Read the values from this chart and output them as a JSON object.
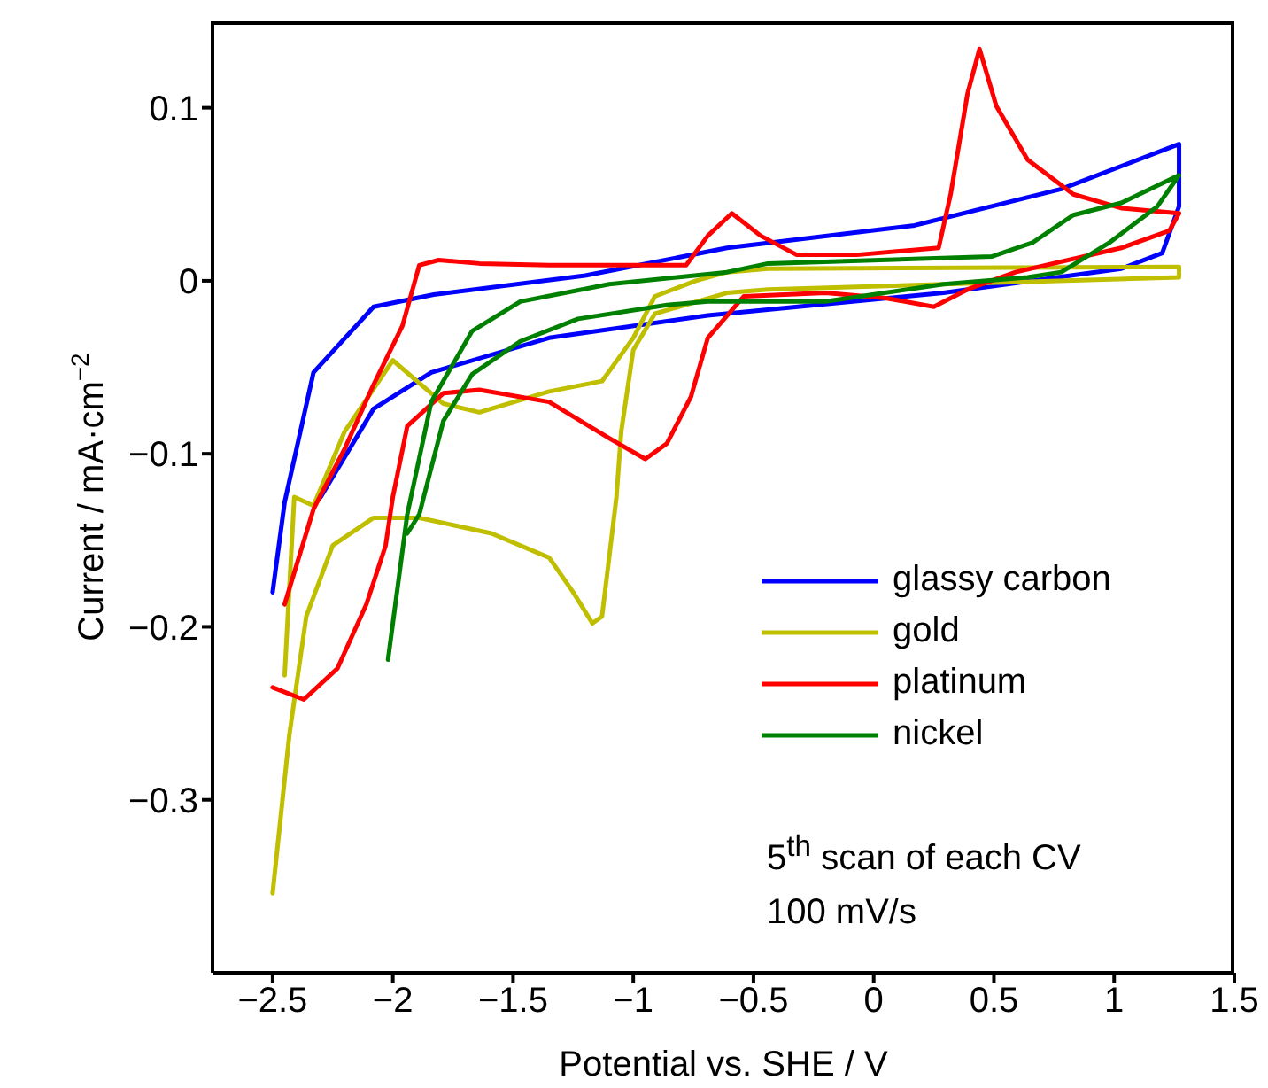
{
  "chart_data": {
    "type": "line",
    "xlabel": "Potential vs. SHE /  V",
    "ylabel": "Current / mA·cm$^{−2}$",
    "xlim": [
      -2.75,
      1.5
    ],
    "ylim": [
      -0.4,
      0.15
    ],
    "xticks": [
      -2.5,
      -2,
      -1.5,
      -1,
      -0.5,
      0,
      0.5,
      1,
      1.5
    ],
    "yticks": [
      -0.3,
      -0.2,
      -0.1,
      0,
      0.1
    ],
    "legend": "bottom right",
    "grid": false,
    "marker": "none",
    "line_style": "solid",
    "annotations": [
      "5$^{th}$ scan of each CV",
      "100 mV/s"
    ],
    "series": [
      {
        "name": "glassy carbon",
        "color": "#0000ff",
        "x": [
          -2.5,
          -2.45,
          -2.33,
          -2.08,
          -1.83,
          -1.2,
          -0.61,
          0.17,
          0.78,
          1.27,
          1.27,
          1.2,
          1.03,
          0.29,
          -0.69,
          -1.35,
          -1.84,
          -2.08,
          -2.3
        ],
        "values": [
          -0.18,
          -0.128,
          -0.053,
          -0.015,
          -0.008,
          0.003,
          0.019,
          0.032,
          0.053,
          0.079,
          0.043,
          0.016,
          0.007,
          -0.007,
          -0.02,
          -0.033,
          -0.053,
          -0.074,
          -0.125
        ]
      },
      {
        "name": "gold",
        "color": "#bfbf00",
        "x": [
          -2.5,
          -2.43,
          -2.36,
          -2.25,
          -2.08,
          -1.89,
          -1.59,
          -1.35,
          -1.25,
          -1.17,
          -1.13,
          -1.07,
          -1.05,
          -1.0,
          -0.91,
          -0.61,
          -0.44,
          0.29,
          1.27,
          1.27,
          -0.44,
          -0.61,
          -0.74,
          -0.91,
          -1.0,
          -1.13,
          -1.35,
          -1.64,
          -1.79,
          -2.0,
          -2.2,
          -2.33,
          -2.41,
          -2.45
        ],
        "values": [
          -0.354,
          -0.262,
          -0.194,
          -0.153,
          -0.137,
          -0.137,
          -0.146,
          -0.16,
          -0.18,
          -0.198,
          -0.194,
          -0.125,
          -0.087,
          -0.04,
          -0.019,
          -0.007,
          -0.005,
          -0.002,
          0.002,
          0.008,
          0.007,
          0.005,
          0,
          -0.009,
          -0.033,
          -0.058,
          -0.064,
          -0.076,
          -0.071,
          -0.046,
          -0.087,
          -0.13,
          -0.125,
          -0.228
        ]
      },
      {
        "name": "platinum",
        "color": "#ff0000",
        "x": [
          -2.5,
          -2.37,
          -2.23,
          -2.11,
          -2.03,
          -2.0,
          -1.94,
          -1.79,
          -1.64,
          -1.35,
          -1.1,
          -0.95,
          -0.86,
          -0.76,
          -0.69,
          -0.54,
          -0.2,
          0.05,
          0.25,
          0.39,
          0.59,
          1.03,
          1.23,
          1.27,
          1.03,
          0.83,
          0.64,
          0.51,
          0.44,
          0.39,
          0.32,
          0.27,
          -0.07,
          -0.32,
          -0.47,
          -0.59,
          -0.69,
          -0.78,
          -1.35,
          -1.64,
          -1.81,
          -1.89,
          -1.96,
          -2.08,
          -2.2,
          -2.33,
          -2.45
        ],
        "values": [
          -0.235,
          -0.242,
          -0.224,
          -0.187,
          -0.153,
          -0.125,
          -0.084,
          -0.065,
          -0.063,
          -0.07,
          -0.091,
          -0.103,
          -0.094,
          -0.067,
          -0.033,
          -0.009,
          -0.007,
          -0.01,
          -0.015,
          -0.005,
          0.005,
          0.019,
          0.029,
          0.039,
          0.042,
          0.05,
          0.07,
          0.101,
          0.134,
          0.108,
          0.05,
          0.019,
          0.015,
          0.015,
          0.026,
          0.039,
          0.026,
          0.009,
          0.009,
          0.01,
          0.012,
          0.009,
          -0.026,
          -0.06,
          -0.097,
          -0.132,
          -0.187
        ]
      },
      {
        "name": "nickel",
        "color": "#008000",
        "x": [
          -2.02,
          -1.94,
          -1.84,
          -1.67,
          -1.47,
          -1.1,
          -0.61,
          -0.44,
          0.49,
          0.66,
          0.83,
          1.03,
          1.27,
          1.18,
          0.98,
          0.78,
          0.64,
          0.29,
          -0.2,
          -0.69,
          -0.86,
          -1.23,
          -1.47,
          -1.67,
          -1.79,
          -1.89,
          -1.94
        ],
        "values": [
          -0.219,
          -0.135,
          -0.07,
          -0.029,
          -0.012,
          -0.002,
          0.005,
          0.01,
          0.014,
          0.022,
          0.038,
          0.045,
          0.061,
          0.043,
          0.022,
          0.005,
          0.002,
          -0.002,
          -0.012,
          -0.012,
          -0.014,
          -0.022,
          -0.035,
          -0.054,
          -0.081,
          -0.135,
          -0.146
        ]
      }
    ]
  }
}
